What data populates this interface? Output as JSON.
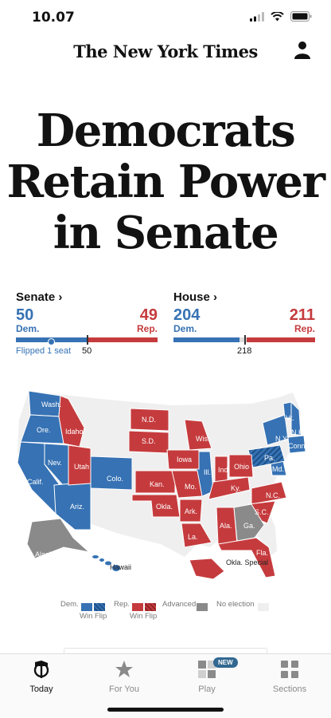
{
  "status": {
    "time": "10.07"
  },
  "masthead": {
    "logo": "The New York Times"
  },
  "headline": {
    "lines": [
      "Democrats",
      "Retain Power",
      "in Senate"
    ]
  },
  "senate": {
    "title": "Senate ›",
    "dem_seats": "50",
    "dem_label": "Dem.",
    "rep_seats": "49",
    "rep_label": "Rep.",
    "majority": "50",
    "flip_note": "Flipped 1 seat",
    "dem_value": 50,
    "rep_value": 49,
    "total": 100
  },
  "house": {
    "title": "House ›",
    "dem_seats": "204",
    "dem_label": "Dem.",
    "rep_seats": "211",
    "rep_label": "Rep.",
    "majority": "218",
    "dem_value": 204,
    "rep_value": 211,
    "total": 435
  },
  "map": {
    "colors": {
      "dem": "#3672b4",
      "rep": "#c53b3d",
      "advanced": "#8a8a8a",
      "none": "#efefef"
    },
    "labels": [
      "Wash.",
      "Ore.",
      "Idaho",
      "Nev.",
      "Calif.",
      "Utah",
      "Ariz.",
      "Colo.",
      "N.D.",
      "S.D.",
      "Kan.",
      "Okla.",
      "Iowa",
      "Wis.",
      "Ill.",
      "Mo.",
      "Ark.",
      "La.",
      "Ind.",
      "Ohio",
      "Ky.",
      "Pa.",
      "N.Y.",
      "Vt.",
      "N.H.",
      "Conn.",
      "Md.",
      "N.C.",
      "S.C.",
      "Ga.",
      "Ala.",
      "Fla.",
      "Alaska",
      "Hawaii",
      "Okla. Special"
    ]
  },
  "legend": {
    "dem": "Dem.",
    "rep": "Rep.",
    "win_flip": "Win Flip",
    "advanced": "Advanced",
    "no_election": "No election"
  },
  "tabs": [
    {
      "label": "Today",
      "icon": "nyt-t-icon"
    },
    {
      "label": "For You",
      "icon": "star-icon"
    },
    {
      "label": "Play",
      "icon": "play-grid-icon",
      "badge": "NEW"
    },
    {
      "label": "Sections",
      "icon": "sections-grid-icon"
    }
  ]
}
